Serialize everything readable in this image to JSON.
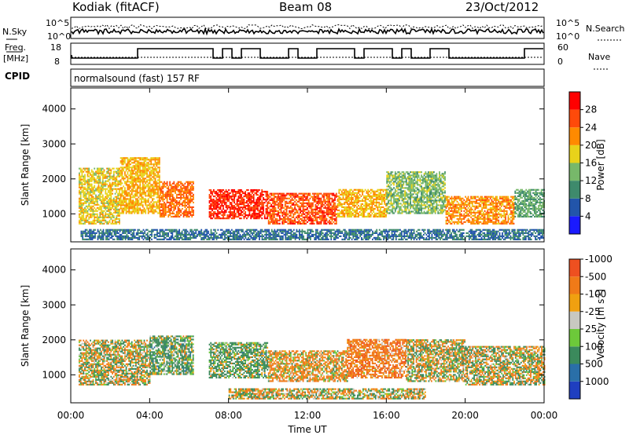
{
  "header": {
    "station": "Kodiak (fitACF)",
    "beam": "Beam 08",
    "date": "23/Oct/2012"
  },
  "noise_panel": {
    "left_label": "N.Sky",
    "right_label": "N.Search",
    "y_top": "10^5",
    "y_bottom": "10^0"
  },
  "freq_panel": {
    "left_label_1": "Freq.",
    "left_label_2": "[MHz]",
    "right_label": "Nave",
    "left_ticks": [
      "18",
      "8"
    ],
    "right_ticks": [
      "60",
      "0"
    ]
  },
  "cpid": {
    "label": "CPID",
    "text": "normalsound (fast) 157 RF"
  },
  "x_axis": {
    "label": "Time UT",
    "ticks": [
      "00:00",
      "04:00",
      "08:00",
      "12:00",
      "16:00",
      "20:00",
      "00:00"
    ],
    "range_hours": [
      0,
      24
    ]
  },
  "colors": {
    "power_scale": [
      "#1a1aff",
      "#2255aa",
      "#3e8a6c",
      "#77b86a",
      "#e8d21a",
      "#ff8a00",
      "#ff4a0a",
      "#ff0000"
    ],
    "velocity_scale": [
      "#1f3fc0",
      "#2a6fa8",
      "#3b8a5c",
      "#6dc93a",
      "#c8c8c0",
      "#f0a010",
      "#f07a18",
      "#ee5020",
      "#e02020"
    ]
  },
  "chart_data": [
    {
      "type": "heatmap",
      "title": "",
      "xlabel": "Time UT",
      "ylabel": "Slant Range [km]",
      "xlim": [
        0,
        24
      ],
      "ylim": [
        200,
        4600
      ],
      "yticks": [
        1000,
        2000,
        3000,
        4000
      ],
      "colorbar": {
        "label": "Power [dB]",
        "ticks": [
          "4",
          "8",
          "12",
          "16",
          "20",
          "24",
          "28"
        ],
        "range": [
          0,
          32
        ]
      },
      "bands": [
        {
          "t0": 0.4,
          "t1": 2.5,
          "r0": 700,
          "r1": 2300,
          "value": 18
        },
        {
          "t0": 2.5,
          "t1": 4.5,
          "r0": 1000,
          "r1": 2600,
          "value": 20
        },
        {
          "t0": 4.5,
          "t1": 6.2,
          "r0": 900,
          "r1": 1900,
          "value": 24
        },
        {
          "t0": 7.0,
          "t1": 10.0,
          "r0": 850,
          "r1": 1700,
          "value": 28
        },
        {
          "t0": 10.0,
          "t1": 13.5,
          "r0": 700,
          "r1": 1600,
          "value": 26
        },
        {
          "t0": 13.5,
          "t1": 16.0,
          "r0": 900,
          "r1": 1700,
          "value": 20
        },
        {
          "t0": 16.0,
          "t1": 19.0,
          "r0": 1000,
          "r1": 2200,
          "value": 14
        },
        {
          "t0": 19.0,
          "t1": 22.5,
          "r0": 700,
          "r1": 1500,
          "value": 22
        },
        {
          "t0": 22.5,
          "t1": 24.0,
          "r0": 900,
          "r1": 1700,
          "value": 12
        },
        {
          "t0": 0.5,
          "t1": 24.0,
          "r0": 250,
          "r1": 550,
          "value": 8
        }
      ]
    },
    {
      "type": "heatmap",
      "title": "",
      "xlabel": "Time UT",
      "ylabel": "Slant Range [km]",
      "xlim": [
        0,
        24
      ],
      "ylim": [
        200,
        4600
      ],
      "yticks": [
        1000,
        2000,
        3000,
        4000
      ],
      "colorbar": {
        "label": "Velocity [m s-1]",
        "ticks": [
          "1000",
          "500",
          "100",
          "25",
          "-25",
          "-100",
          "-500",
          "-1000"
        ],
        "range": [
          -1500,
          1500
        ]
      },
      "bands": [
        {
          "t0": 0.4,
          "t1": 4.0,
          "r0": 700,
          "r1": 2000,
          "value": 0
        },
        {
          "t0": 4.0,
          "t1": 6.2,
          "r0": 1000,
          "r1": 2100,
          "value": 200
        },
        {
          "t0": 7.0,
          "t1": 10.0,
          "r0": 900,
          "r1": 1900,
          "value": 180
        },
        {
          "t0": 10.0,
          "t1": 14.0,
          "r0": 800,
          "r1": 1700,
          "value": -150
        },
        {
          "t0": 14.0,
          "t1": 17.0,
          "r0": 900,
          "r1": 2000,
          "value": -300
        },
        {
          "t0": 17.0,
          "t1": 20.0,
          "r0": 800,
          "r1": 2000,
          "value": 0
        },
        {
          "t0": 20.0,
          "t1": 24.0,
          "r0": 700,
          "r1": 1800,
          "value": 0
        },
        {
          "t0": 8.0,
          "t1": 18.0,
          "r0": 300,
          "r1": 600,
          "value": 0
        }
      ]
    }
  ]
}
